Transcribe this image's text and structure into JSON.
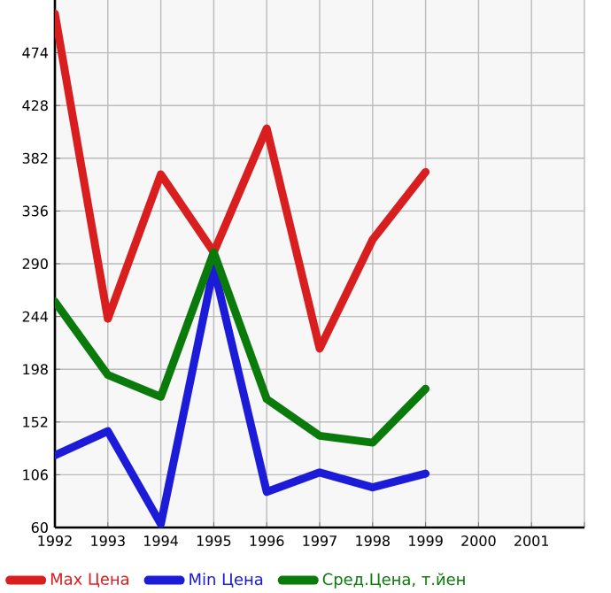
{
  "chart_data": {
    "type": "line",
    "x": [
      1992,
      1993,
      1994,
      1995,
      1996,
      1997,
      1998,
      1999
    ],
    "series": [
      {
        "name": "Max Цена",
        "color": "#d81e1e",
        "values": [
          508,
          242,
          368,
          300,
          408,
          216,
          311,
          370
        ]
      },
      {
        "name": "Min Цена",
        "color": "#1c1cd8",
        "values": [
          123,
          144,
          63,
          287,
          91,
          108,
          95,
          107
        ]
      },
      {
        "name": "Сред.Цена, т.йен",
        "color": "#0a7a0a",
        "values": [
          257,
          193,
          174,
          300,
          172,
          140,
          134,
          181
        ]
      }
    ],
    "xlim": [
      1992,
      2002
    ],
    "xticks": [
      1992,
      1993,
      1994,
      1995,
      1996,
      1997,
      1998,
      1999,
      2000,
      2001,
      {
        "value": 2002,
        "label": null
      }
    ],
    "ylim": [
      60,
      520
    ],
    "yticks": [
      60,
      106,
      152,
      198,
      244,
      290,
      336,
      382,
      428,
      474
    ],
    "grid": true,
    "legend": "bottom",
    "marker": "none",
    "line_style": "solid"
  }
}
